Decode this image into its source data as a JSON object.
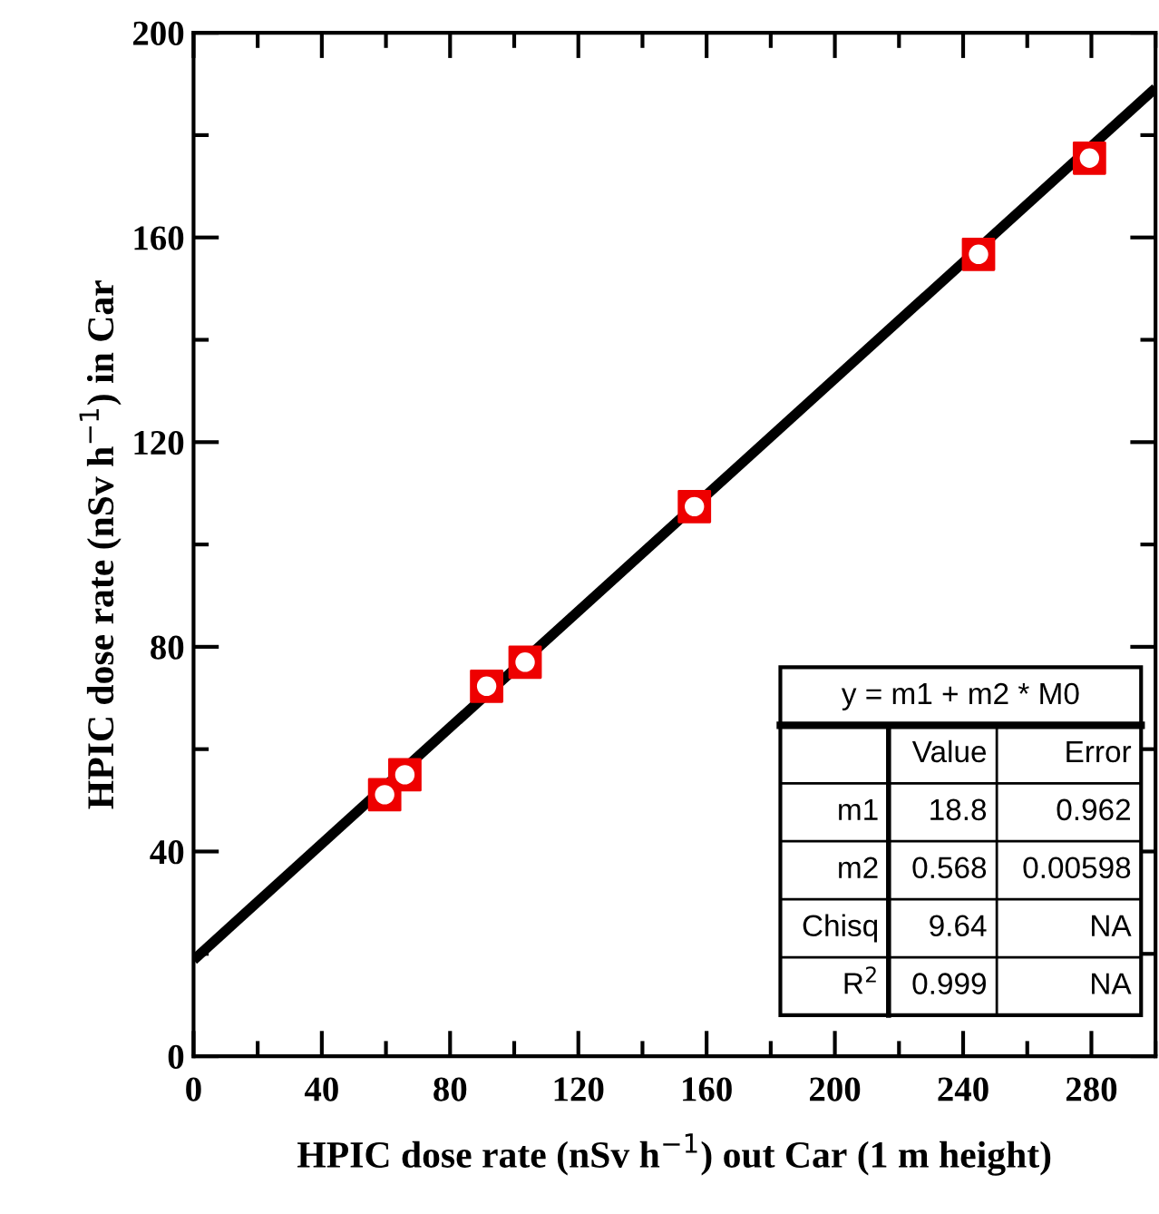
{
  "chart_data": {
    "type": "scatter",
    "xlabel": "HPIC dose rate (nSv h$^{−1}$) out Car (1 m height)",
    "ylabel": "HPIC dose rate (nSv h$^{−1}$) in Car",
    "series": [
      {
        "color": "#ee0000",
        "marker": "square",
        "x": [
          59.6,
          65.9,
          91.4,
          103.4,
          156.2,
          244.8,
          279.4
        ],
        "values": [
          51.1,
          55.0,
          72.3,
          77.0,
          107.4,
          156.7,
          175.5
        ]
      },
      {
        "type": "line",
        "color": "#000000",
        "x": [
          0,
          300
        ],
        "values": [
          18.8,
          189.2
        ]
      }
    ],
    "xlim": [
      0,
      300
    ],
    "xticks": [
      0,
      40,
      80,
      120,
      160,
      200,
      240,
      280
    ],
    "ylim": [
      0,
      200
    ],
    "yticks": [
      0,
      40,
      80,
      120,
      160,
      200
    ],
    "grid": false,
    "annotations": [
      "y = m1 + m2 * M0",
      "Value",
      "Error",
      "m1",
      "18.8",
      "0.962",
      "m2",
      "0.568",
      "0.00598",
      "Chisq",
      "9.64",
      "NA",
      "R$^{2}$",
      "0.999",
      "NA"
    ]
  }
}
